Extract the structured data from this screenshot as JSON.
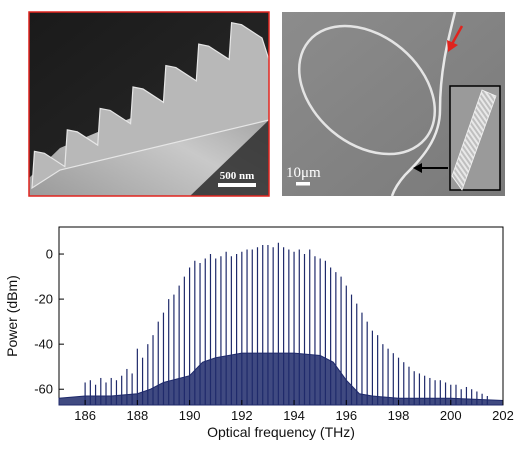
{
  "panels": {
    "sem_grating": {
      "scale_label": "500 nm",
      "border_color": "#e0241e"
    },
    "sem_ring": {
      "scale_label": "10μm",
      "arrow_color": "#e0241e"
    }
  },
  "chart_data": {
    "type": "line",
    "xlabel": "Optical frequency (THz)",
    "ylabel": "Power (dBm)",
    "xlim": [
      185,
      202
    ],
    "ylim": [
      -67,
      12
    ],
    "xticks": [
      186,
      188,
      190,
      192,
      194,
      196,
      198,
      200,
      202
    ],
    "yticks": [
      0,
      -20,
      -40,
      -60
    ],
    "line_color": "#1f2a6b",
    "comb_spacing_thz": 0.2,
    "comb_lines": {
      "x": [
        186.0,
        186.2,
        186.4,
        186.6,
        186.8,
        187.0,
        187.2,
        187.4,
        187.6,
        187.8,
        188.0,
        188.2,
        188.4,
        188.6,
        188.8,
        189.0,
        189.2,
        189.4,
        189.6,
        189.8,
        190.0,
        190.2,
        190.4,
        190.6,
        190.8,
        191.0,
        191.2,
        191.4,
        191.6,
        191.8,
        192.0,
        192.2,
        192.4,
        192.6,
        192.8,
        193.0,
        193.2,
        193.4,
        193.6,
        193.8,
        194.0,
        194.2,
        194.4,
        194.6,
        194.8,
        195.0,
        195.2,
        195.4,
        195.6,
        195.8,
        196.0,
        196.2,
        196.4,
        196.6,
        196.8,
        197.0,
        197.2,
        197.4,
        197.6,
        197.8,
        198.0,
        198.2,
        198.4,
        198.6,
        198.8,
        199.0,
        199.2,
        199.4,
        199.6,
        199.8,
        200.0,
        200.2,
        200.4,
        200.6,
        200.8,
        201.0,
        201.2,
        201.4
      ],
      "y": [
        -57,
        -56,
        -58,
        -55,
        -57,
        -55,
        -56,
        -54,
        -51,
        -53,
        -42,
        -46,
        -40,
        -36,
        -30,
        -26,
        -20,
        -18,
        -14,
        -10,
        -6,
        -3,
        -4,
        -2,
        0,
        -2,
        -1,
        1,
        -1,
        0,
        1,
        2,
        2,
        3,
        4,
        4,
        3,
        5,
        3,
        2,
        1,
        2,
        0,
        2,
        -1,
        -2,
        -3,
        -6,
        -8,
        -10,
        -14,
        -18,
        -22,
        -26,
        -30,
        -34,
        -36,
        -40,
        -42,
        -44,
        -46,
        -48,
        -50,
        -52,
        -53,
        -54,
        -55,
        -56,
        -56,
        -57,
        -58,
        -58,
        -60,
        -59,
        -60,
        -61,
        -62,
        -63
      ]
    },
    "pedestal": {
      "x": [
        185,
        186,
        187,
        188,
        188.5,
        189,
        190,
        190.5,
        191,
        192,
        193,
        194,
        195,
        195.5,
        196,
        196.5,
        197,
        198,
        200,
        202
      ],
      "y": [
        -64,
        -63,
        -63,
        -62,
        -60,
        -57,
        -54,
        -48,
        -46,
        -44,
        -44,
        -44,
        -45,
        -48,
        -56,
        -62,
        -63,
        -64,
        -64,
        -65
      ]
    }
  }
}
